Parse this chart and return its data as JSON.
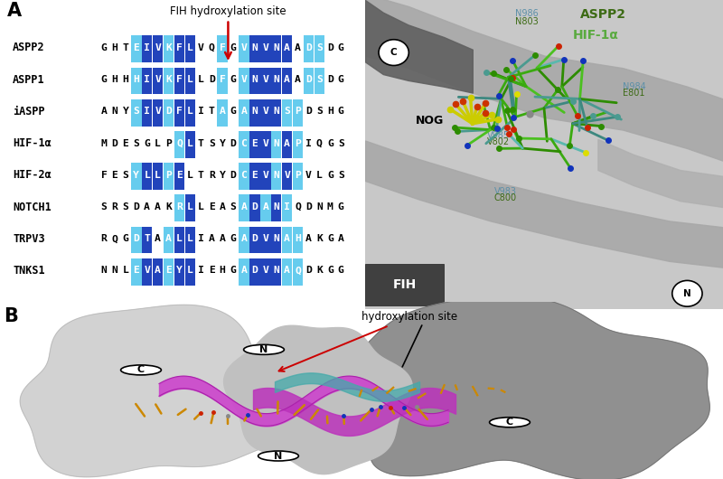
{
  "panel_A_label": "A",
  "panel_B_label": "B",
  "title_annotation": "FIH hydroxylation site",
  "arrow_color": "#cc0000",
  "seq_proteins": [
    "ASPP2",
    "ASPP1",
    "iASPP",
    "HIF-1α",
    "HIF-2α",
    "NOTCH1",
    "TRPV3",
    "TNKS1"
  ],
  "seq_sequences": [
    "GHTEIVKFLVQFGVNVNAADSDG",
    "GHHHIVKFLLDFGVNVNAADSDG",
    "ANYSIVDFLITAGANVNSPDSHG",
    "MDESGLPQLTSYDCEVNAPIQGS",
    "FESYLLPELTRYDCEVNVPVLGS",
    "SRSDAAKRLLEASADANIQDNMG",
    "RQGDTAALLIAAGADVNAHAKGA",
    "NNLEVAEYLIEHGADVNAQDKGG"
  ],
  "highlight_dark": {
    "ASPP2": [
      4,
      5,
      7,
      8,
      14,
      15,
      16,
      17
    ],
    "ASPP1": [
      4,
      5,
      7,
      8,
      14,
      15,
      16,
      17
    ],
    "iASPP": [
      4,
      5,
      7,
      8,
      14,
      15,
      16
    ],
    "HIF-1α": [
      8,
      14,
      15,
      17
    ],
    "HIF-2α": [
      4,
      5,
      7,
      14,
      15,
      17
    ],
    "NOTCH1": [
      8,
      14,
      16
    ],
    "TRPV3": [
      4,
      7,
      8,
      14,
      15,
      16
    ],
    "TNKS1": [
      4,
      5,
      7,
      8,
      14,
      15,
      16
    ]
  },
  "highlight_light": {
    "ASPP2": [
      3,
      6,
      11,
      13,
      19,
      20
    ],
    "ASPP1": [
      3,
      6,
      11,
      13,
      19,
      20
    ],
    "iASPP": [
      3,
      6,
      11,
      13,
      17,
      18
    ],
    "HIF-1α": [
      7,
      13,
      16,
      18
    ],
    "HIF-2α": [
      3,
      6,
      13,
      16,
      18
    ],
    "NOTCH1": [
      7,
      13,
      15,
      17
    ],
    "TRPV3": [
      3,
      6,
      13,
      17,
      18
    ],
    "TNKS1": [
      3,
      6,
      13,
      17,
      18
    ]
  },
  "color_dark_blue": "#2244bb",
  "color_light_blue": "#66ccee",
  "color_bg": "#ffffff",
  "struct_color_ASPP2": "#3d6b15",
  "struct_color_HIF": "#5aaa40",
  "panel_fontsize": 15,
  "seq_fontsize": 8.2,
  "label_fontsize": 8.5
}
